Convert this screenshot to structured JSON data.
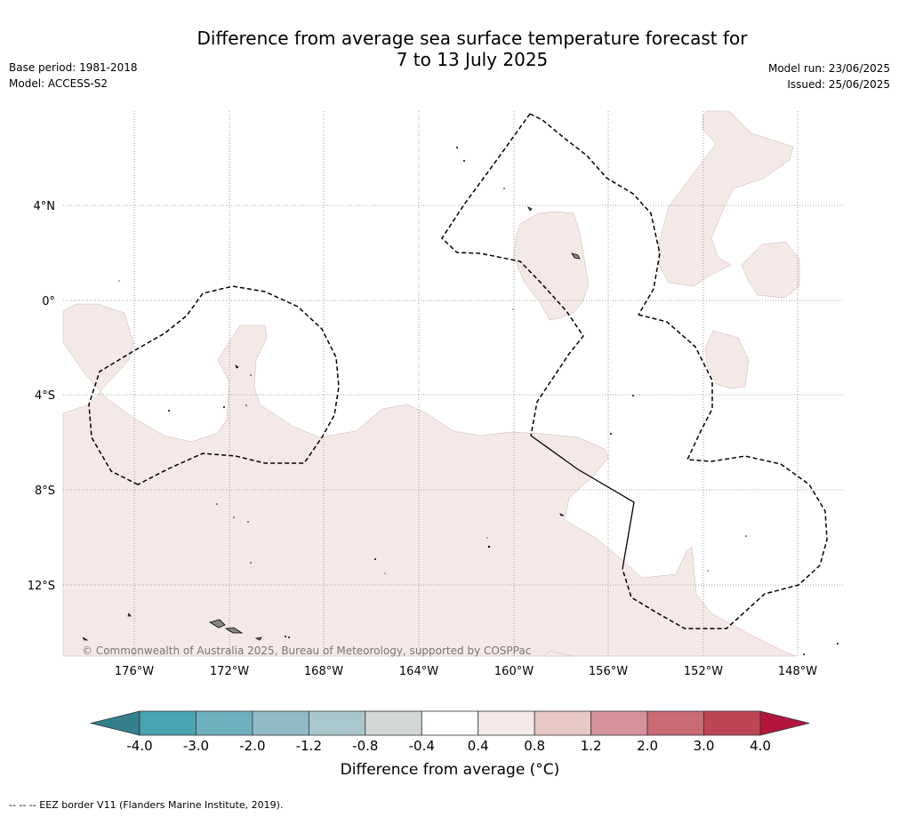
{
  "title": {
    "line1": "Difference from average sea surface temperature forecast for",
    "line2": "7 to 13 July 2025"
  },
  "meta_left": {
    "base_period": "Base period: 1981-2018",
    "model": "Model: ACCESS-S2"
  },
  "meta_right": {
    "model_run": "Model run: 23/06/2025",
    "issued": "Issued: 25/06/2025"
  },
  "map": {
    "lat_labels": [
      "4°N",
      "0°",
      "4°S",
      "8°S",
      "12°S"
    ],
    "lon_labels": [
      "176°W",
      "172°W",
      "168°W",
      "164°W",
      "160°W",
      "156°W",
      "152°W",
      "148°W"
    ],
    "copyright": "© Commonwealth of Australia 2025, Bureau of Meteorology, supported by COSPPac",
    "anomaly_fill_color": "#f5e9e8",
    "land_color": "#888888"
  },
  "colorbar": {
    "ticks": [
      "-4.0",
      "-3.0",
      "-2.0",
      "-1.2",
      "-0.8",
      "-0.4",
      "0.4",
      "0.8",
      "1.2",
      "2.0",
      "3.0",
      "4.0"
    ],
    "colors": [
      "#347f8c",
      "#48a3b3",
      "#6fb0be",
      "#90bac5",
      "#a9c8cd",
      "#d2d8d8",
      "#ffffff",
      "#f5e9e8",
      "#e7c8c4",
      "#d6929a",
      "#c96a76",
      "#be4556",
      "#b3153a"
    ],
    "label": "Difference from average (°C)"
  },
  "footer": "--  --  -- EEZ border V11 (Flanders Marine Institute, 2019)."
}
